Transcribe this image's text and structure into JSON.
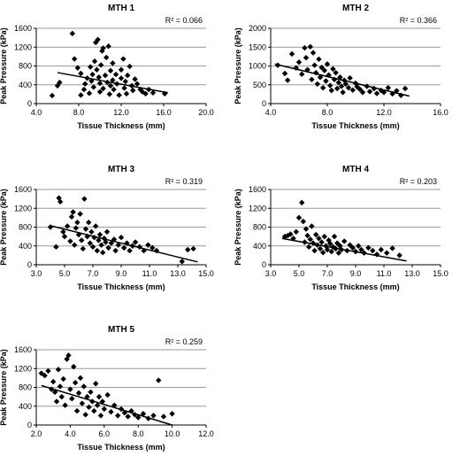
{
  "chart_data": [
    {
      "type": "scatter",
      "title": "MTH 1",
      "xlabel": "Tissue Thickness (mm)",
      "ylabel": "Peak Pressure (kPa)",
      "annotation": "R² = 0.066",
      "xlim": [
        4.0,
        20.0
      ],
      "ylim": [
        0,
        1600
      ],
      "xticks": [
        "4.0",
        "8.0",
        "12.0",
        "16.0",
        "20.0"
      ],
      "yticks": [
        "0",
        "400",
        "800",
        "1200",
        "1600"
      ],
      "trend": {
        "x": [
          6.0,
          16.4
        ],
        "y": [
          660,
          230
        ]
      },
      "points": [
        [
          5.5,
          170
        ],
        [
          6.0,
          380
        ],
        [
          6.2,
          450
        ],
        [
          7.4,
          1490
        ],
        [
          7.6,
          950
        ],
        [
          7.9,
          760
        ],
        [
          8.2,
          640
        ],
        [
          8.2,
          180
        ],
        [
          8.5,
          300
        ],
        [
          8.6,
          420
        ],
        [
          8.8,
          540
        ],
        [
          9.0,
          220
        ],
        [
          9.1,
          780
        ],
        [
          9.2,
          480
        ],
        [
          9.3,
          620
        ],
        [
          9.4,
          350
        ],
        [
          9.5,
          900
        ],
        [
          9.6,
          1300
        ],
        [
          9.8,
          1360
        ],
        [
          9.7,
          720
        ],
        [
          9.9,
          560
        ],
        [
          10.0,
          430
        ],
        [
          10.0,
          250
        ],
        [
          10.1,
          820
        ],
        [
          10.2,
          1120
        ],
        [
          10.3,
          1180
        ],
        [
          10.3,
          320
        ],
        [
          10.5,
          600
        ],
        [
          10.6,
          980
        ],
        [
          10.7,
          450
        ],
        [
          10.8,
          1220
        ],
        [
          10.9,
          200
        ],
        [
          11.0,
          700
        ],
        [
          11.0,
          380
        ],
        [
          11.2,
          500
        ],
        [
          11.2,
          860
        ],
        [
          11.3,
          300
        ],
        [
          11.5,
          620
        ],
        [
          11.6,
          420
        ],
        [
          11.8,
          180
        ],
        [
          12.0,
          540
        ],
        [
          12.0,
          720
        ],
        [
          12.2,
          950
        ],
        [
          12.3,
          330
        ],
        [
          12.4,
          470
        ],
        [
          12.5,
          210
        ],
        [
          12.6,
          600
        ],
        [
          12.8,
          790
        ],
        [
          13.0,
          380
        ],
        [
          13.1,
          280
        ],
        [
          13.3,
          520
        ],
        [
          13.5,
          420
        ],
        [
          13.8,
          300
        ],
        [
          14.0,
          250
        ],
        [
          14.3,
          210
        ],
        [
          14.6,
          300
        ],
        [
          15.0,
          230
        ],
        [
          16.1,
          210
        ]
      ]
    },
    {
      "type": "scatter",
      "title": "MTH 2",
      "xlabel": "Tissue Thickness (mm)",
      "ylabel": "Peak Pressure (kPa)",
      "annotation": "R² = 0.366",
      "xlim": [
        4.0,
        16.0
      ],
      "ylim": [
        0,
        2000
      ],
      "xticks": [
        "4.0",
        "8.0",
        "12.0",
        "16.0"
      ],
      "yticks": [
        "0",
        "500",
        "1000",
        "1500",
        "2000"
      ],
      "trend": {
        "x": [
          4.3,
          13.8
        ],
        "y": [
          1050,
          200
        ]
      },
      "points": [
        [
          4.5,
          1020
        ],
        [
          5.0,
          800
        ],
        [
          5.2,
          620
        ],
        [
          5.5,
          1320
        ],
        [
          5.8,
          950
        ],
        [
          6.0,
          1100
        ],
        [
          6.2,
          780
        ],
        [
          6.4,
          1480
        ],
        [
          6.5,
          1220
        ],
        [
          6.6,
          900
        ],
        [
          6.8,
          1510
        ],
        [
          6.9,
          640
        ],
        [
          7.0,
          1350
        ],
        [
          7.1,
          1020
        ],
        [
          7.2,
          820
        ],
        [
          7.3,
          520
        ],
        [
          7.4,
          1180
        ],
        [
          7.5,
          700
        ],
        [
          7.6,
          960
        ],
        [
          7.7,
          420
        ],
        [
          7.8,
          880
        ],
        [
          7.9,
          600
        ],
        [
          8.0,
          1050
        ],
        [
          8.1,
          760
        ],
        [
          8.2,
          480
        ],
        [
          8.3,
          350
        ],
        [
          8.4,
          920
        ],
        [
          8.5,
          640
        ],
        [
          8.6,
          820
        ],
        [
          8.7,
          400
        ],
        [
          8.8,
          560
        ],
        [
          8.9,
          700
        ],
        [
          9.0,
          460
        ],
        [
          9.1,
          300
        ],
        [
          9.2,
          620
        ],
        [
          9.3,
          520
        ],
        [
          9.5,
          420
        ],
        [
          9.6,
          680
        ],
        [
          9.8,
          360
        ],
        [
          10.0,
          540
        ],
        [
          10.1,
          450
        ],
        [
          10.3,
          380
        ],
        [
          10.5,
          300
        ],
        [
          10.8,
          460
        ],
        [
          11.0,
          320
        ],
        [
          11.3,
          400
        ],
        [
          11.5,
          270
        ],
        [
          11.8,
          350
        ],
        [
          12.0,
          300
        ],
        [
          12.3,
          420
        ],
        [
          12.6,
          260
        ],
        [
          12.9,
          340
        ],
        [
          13.2,
          220
        ],
        [
          13.5,
          400
        ]
      ]
    },
    {
      "type": "scatter",
      "title": "MTH 3",
      "xlabel": "Tissue Thickness (mm)",
      "ylabel": "Peak Pressure (kPa)",
      "annotation": "R² = 0.319",
      "xlim": [
        3.0,
        15.0
      ],
      "ylim": [
        0,
        1600
      ],
      "xticks": [
        "3.0",
        "5.0",
        "7.0",
        "9.0",
        "11.0",
        "13.0",
        "15.0"
      ],
      "yticks": [
        "0",
        "400",
        "800",
        "1200",
        "1600"
      ],
      "trend": {
        "x": [
          4.0,
          14.4
        ],
        "y": [
          830,
          60
        ]
      },
      "points": [
        [
          4.0,
          800
        ],
        [
          4.4,
          380
        ],
        [
          4.6,
          1420
        ],
        [
          4.7,
          1340
        ],
        [
          4.9,
          700
        ],
        [
          5.0,
          600
        ],
        [
          5.2,
          820
        ],
        [
          5.4,
          500
        ],
        [
          5.5,
          1020
        ],
        [
          5.6,
          1120
        ],
        [
          5.7,
          420
        ],
        [
          5.8,
          780
        ],
        [
          5.9,
          900
        ],
        [
          6.0,
          640
        ],
        [
          6.1,
          1080
        ],
        [
          6.2,
          520
        ],
        [
          6.3,
          340
        ],
        [
          6.4,
          1400
        ],
        [
          6.5,
          760
        ],
        [
          6.6,
          600
        ],
        [
          6.7,
          900
        ],
        [
          6.8,
          460
        ],
        [
          6.9,
          700
        ],
        [
          7.0,
          380
        ],
        [
          7.1,
          580
        ],
        [
          7.2,
          820
        ],
        [
          7.3,
          300
        ],
        [
          7.4,
          520
        ],
        [
          7.5,
          640
        ],
        [
          7.6,
          420
        ],
        [
          7.7,
          260
        ],
        [
          7.8,
          560
        ],
        [
          7.9,
          480
        ],
        [
          8.0,
          700
        ],
        [
          8.1,
          360
        ],
        [
          8.3,
          460
        ],
        [
          8.5,
          540
        ],
        [
          8.6,
          300
        ],
        [
          8.8,
          420
        ],
        [
          9.0,
          580
        ],
        [
          9.2,
          360
        ],
        [
          9.4,
          460
        ],
        [
          9.6,
          300
        ],
        [
          9.8,
          400
        ],
        [
          10.0,
          480
        ],
        [
          10.3,
          380
        ],
        [
          10.6,
          300
        ],
        [
          10.9,
          420
        ],
        [
          11.2,
          360
        ],
        [
          11.5,
          300
        ],
        [
          13.3,
          70
        ],
        [
          13.7,
          320
        ],
        [
          14.1,
          340
        ]
      ]
    },
    {
      "type": "scatter",
      "title": "MTH 4",
      "xlabel": "Tissue Thickness (mm)",
      "ylabel": "Peak Pressure (kPa)",
      "annotation": "R² = 0.203",
      "xlim": [
        3.0,
        15.0
      ],
      "ylim": [
        0,
        1600
      ],
      "xticks": [
        "3.0",
        "5.0",
        "7.0",
        "9.0",
        "11.0",
        "13.0",
        "15.0"
      ],
      "yticks": [
        "0",
        "400",
        "800",
        "1200",
        "1600"
      ],
      "trend": {
        "x": [
          3.8,
          12.6
        ],
        "y": [
          560,
          80
        ]
      },
      "points": [
        [
          4.0,
          600
        ],
        [
          4.2,
          620
        ],
        [
          4.4,
          650
        ],
        [
          4.6,
          560
        ],
        [
          4.8,
          700
        ],
        [
          5.0,
          1000
        ],
        [
          5.2,
          1320
        ],
        [
          5.3,
          920
        ],
        [
          5.4,
          480
        ],
        [
          5.5,
          760
        ],
        [
          5.6,
          620
        ],
        [
          5.7,
          380
        ],
        [
          5.8,
          540
        ],
        [
          5.9,
          820
        ],
        [
          6.0,
          460
        ],
        [
          6.1,
          300
        ],
        [
          6.2,
          640
        ],
        [
          6.3,
          420
        ],
        [
          6.4,
          560
        ],
        [
          6.5,
          340
        ],
        [
          6.6,
          480
        ],
        [
          6.7,
          260
        ],
        [
          6.8,
          600
        ],
        [
          6.9,
          400
        ],
        [
          7.0,
          320
        ],
        [
          7.1,
          520
        ],
        [
          7.2,
          450
        ],
        [
          7.3,
          280
        ],
        [
          7.4,
          380
        ],
        [
          7.5,
          600
        ],
        [
          7.6,
          340
        ],
        [
          7.7,
          460
        ],
        [
          7.8,
          250
        ],
        [
          7.9,
          400
        ],
        [
          8.0,
          320
        ],
        [
          8.2,
          500
        ],
        [
          8.4,
          300
        ],
        [
          8.6,
          420
        ],
        [
          8.8,
          360
        ],
        [
          9.0,
          280
        ],
        [
          9.2,
          400
        ],
        [
          9.4,
          320
        ],
        [
          9.6,
          250
        ],
        [
          9.9,
          360
        ],
        [
          10.2,
          300
        ],
        [
          10.5,
          220
        ],
        [
          10.8,
          320
        ],
        [
          11.2,
          250
        ],
        [
          11.6,
          350
        ],
        [
          12.1,
          200
        ]
      ]
    },
    {
      "type": "scatter",
      "title": "MTH 5",
      "xlabel": "Tissue Thickness (mm)",
      "ylabel": "Peak Pressure (kPa)",
      "annotation": "R² = 0.259",
      "xlim": [
        2.0,
        12.0
      ],
      "ylim": [
        0,
        1600
      ],
      "xticks": [
        "2.0",
        "4.0",
        "6.0",
        "8.0",
        "10.0",
        "12.0"
      ],
      "yticks": [
        "0",
        "400",
        "800",
        "1200",
        "1600"
      ],
      "trend": {
        "x": [
          2.3,
          10.0
        ],
        "y": [
          840,
          0
        ]
      },
      "points": [
        [
          2.3,
          1100
        ],
        [
          2.5,
          1050
        ],
        [
          2.7,
          1150
        ],
        [
          2.9,
          760
        ],
        [
          3.0,
          920
        ],
        [
          3.1,
          700
        ],
        [
          3.2,
          500
        ],
        [
          3.3,
          1180
        ],
        [
          3.4,
          820
        ],
        [
          3.5,
          600
        ],
        [
          3.6,
          980
        ],
        [
          3.7,
          420
        ],
        [
          3.8,
          1400
        ],
        [
          3.9,
          1480
        ],
        [
          4.0,
          760
        ],
        [
          4.1,
          560
        ],
        [
          4.2,
          1240
        ],
        [
          4.3,
          900
        ],
        [
          4.4,
          300
        ],
        [
          4.5,
          680
        ],
        [
          4.6,
          1000
        ],
        [
          4.7,
          460
        ],
        [
          4.8,
          820
        ],
        [
          4.9,
          220
        ],
        [
          5.0,
          600
        ],
        [
          5.1,
          380
        ],
        [
          5.2,
          700
        ],
        [
          5.3,
          500
        ],
        [
          5.4,
          300
        ],
        [
          5.5,
          880
        ],
        [
          5.6,
          420
        ],
        [
          5.7,
          600
        ],
        [
          5.8,
          200
        ],
        [
          5.9,
          500
        ],
        [
          6.0,
          340
        ],
        [
          6.2,
          640
        ],
        [
          6.4,
          280
        ],
        [
          6.6,
          420
        ],
        [
          6.8,
          200
        ],
        [
          7.0,
          340
        ],
        [
          7.2,
          260
        ],
        [
          7.4,
          180
        ],
        [
          7.6,
          300
        ],
        [
          7.8,
          220
        ],
        [
          8.0,
          160
        ],
        [
          8.3,
          240
        ],
        [
          8.6,
          140
        ],
        [
          8.9,
          200
        ],
        [
          9.2,
          950
        ],
        [
          9.5,
          180
        ],
        [
          10.0,
          240
        ]
      ]
    }
  ]
}
